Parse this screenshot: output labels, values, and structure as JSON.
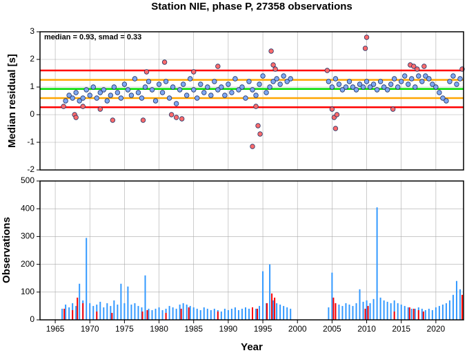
{
  "chart_data": [
    {
      "type": "scatter",
      "title": "Station NIE, phase P, 27358 observations",
      "ylabel": "Median residual [s]",
      "annotation": "median = 0.93, smad = 0.33",
      "xlim": [
        1962.8,
        2024
      ],
      "ylim": [
        -2,
        3
      ],
      "yticks": [
        -2,
        -1,
        0,
        1,
        2,
        3
      ],
      "grid": true,
      "hlines": [
        {
          "value": 1.6,
          "color": "#ff0000"
        },
        {
          "value": 1.26,
          "color": "#ffa500"
        },
        {
          "value": 0.93,
          "color": "#00dd00"
        },
        {
          "value": 0.6,
          "color": "#ffa500"
        },
        {
          "value": 0.27,
          "color": "#ff0000"
        }
      ],
      "series": [
        {
          "color": "#7fa8f2",
          "x": [
            1966.5,
            1967,
            1967.5,
            1968,
            1968.5,
            1969,
            1969.5,
            1970,
            1970.5,
            1971,
            1971.5,
            1972,
            1972.5,
            1973,
            1973.5,
            1974,
            1974.5,
            1975,
            1975.5,
            1976,
            1976.5,
            1977,
            1977.5,
            1978,
            1978.5,
            1979,
            1979.5,
            1980,
            1980.5,
            1981,
            1981.5,
            1982,
            1982.5,
            1983,
            1983.5,
            1984,
            1984.5,
            1985,
            1985.5,
            1986,
            1986.5,
            1987,
            1987.5,
            1988,
            1988.5,
            1989,
            1989.5,
            1990,
            1990.5,
            1991,
            1991.5,
            1992,
            1992.5,
            1993,
            1993.5,
            1994,
            1994.5,
            1995,
            1995.5,
            1996,
            1996.5,
            1997,
            1997.5,
            1998,
            1998.5,
            1999,
            2004.5,
            2005,
            2005.5,
            2006,
            2006.5,
            2007,
            2007.5,
            2008,
            2008.5,
            2009,
            2009.5,
            2010,
            2010.5,
            2011,
            2011.5,
            2012,
            2012.5,
            2013,
            2013.5,
            2014,
            2014.5,
            2015,
            2015.5,
            2016,
            2016.5,
            2017,
            2017.5,
            2018,
            2018.5,
            2019,
            2019.5,
            2020,
            2020.5,
            2021,
            2021.5,
            2022,
            2022.5,
            2023,
            2023.5
          ],
          "values": [
            0.5,
            0.7,
            0.6,
            0.8,
            0.5,
            0.6,
            0.9,
            0.7,
            1.0,
            0.6,
            0.8,
            0.9,
            0.5,
            0.7,
            1.0,
            0.8,
            0.6,
            1.1,
            0.9,
            0.7,
            1.3,
            0.8,
            0.6,
            1.0,
            1.2,
            0.9,
            0.5,
            1.1,
            0.8,
            1.2,
            0.6,
            1.0,
            0.4,
            0.9,
            1.1,
            0.7,
            1.3,
            0.9,
            0.6,
            1.1,
            0.8,
            1.0,
            0.7,
            1.2,
            0.9,
            1.0,
            0.7,
            1.1,
            0.8,
            1.3,
            0.9,
            1.0,
            0.6,
            1.2,
            0.9,
            0.7,
            1.1,
            1.4,
            0.8,
            1.0,
            1.2,
            1.3,
            1.1,
            1.4,
            1.2,
            1.3,
            1.2,
            1.0,
            1.3,
            1.1,
            0.9,
            1.0,
            1.2,
            1.0,
            0.9,
            1.1,
            1.0,
            1.2,
            1.0,
            1.1,
            0.9,
            1.2,
            1.0,
            0.9,
            1.1,
            1.3,
            1.0,
            1.2,
            1.4,
            1.1,
            1.3,
            1.0,
            1.4,
            1.2,
            1.4,
            1.3,
            1.1,
            1.0,
            0.8,
            0.6,
            0.5,
            1.2,
            1.4,
            1.1,
            1.3
          ]
        },
        {
          "color": "#ff6b6b",
          "x": [
            1966.2,
            1967.8,
            1968,
            1969,
            1971.5,
            1973.3,
            1977.7,
            1978.2,
            1980.8,
            1981.8,
            1982.5,
            1983.3,
            1985,
            1988.5,
            1993.5,
            1994,
            1994.3,
            1994.6,
            1996.2,
            1996.5,
            1996.8,
            2004.3,
            2005,
            2005.3,
            2005.5,
            2005.7,
            2009.8,
            2010,
            2013.8,
            2016.3,
            2016.8,
            2017.3,
            2018.3,
            2023.8
          ],
          "values": [
            0.3,
            0.0,
            -0.1,
            0.3,
            0.2,
            -0.2,
            -0.2,
            1.55,
            1.9,
            0.0,
            -0.1,
            -0.15,
            1.55,
            1.75,
            -1.15,
            0.3,
            -0.4,
            -0.7,
            2.3,
            1.8,
            1.65,
            1.6,
            0.2,
            -0.1,
            -0.5,
            0.0,
            2.4,
            2.8,
            0.2,
            1.8,
            1.75,
            1.65,
            1.75,
            1.65
          ]
        }
      ]
    },
    {
      "type": "bar",
      "ylabel": "Observations",
      "xlabel": "Year",
      "xlim": [
        1962.8,
        2024
      ],
      "xticks": [
        1965,
        1970,
        1975,
        1980,
        1985,
        1990,
        1995,
        2000,
        2005,
        2010,
        2015,
        2020
      ],
      "ylim": [
        0,
        500
      ],
      "yticks": [
        0,
        100,
        200,
        300,
        400,
        500
      ],
      "grid": true,
      "series": [
        {
          "color": "#3399ff",
          "x": [
            1966,
            1966.5,
            1967,
            1967.5,
            1968,
            1968.5,
            1969,
            1969.5,
            1970,
            1970.5,
            1971,
            1971.5,
            1972,
            1972.5,
            1973,
            1973.5,
            1974,
            1974.5,
            1975,
            1975.5,
            1976,
            1976.5,
            1977,
            1977.5,
            1978,
            1978.5,
            1979,
            1979.5,
            1980,
            1980.5,
            1981,
            1981.5,
            1982,
            1982.5,
            1983,
            1983.5,
            1984,
            1984.5,
            1985,
            1985.5,
            1986,
            1986.5,
            1987,
            1987.5,
            1988,
            1988.5,
            1989,
            1989.5,
            1990,
            1990.5,
            1991,
            1991.5,
            1992,
            1992.5,
            1993,
            1993.5,
            1994,
            1994.5,
            1995,
            1995.5,
            1996,
            1996.5,
            1997,
            1997.5,
            1998,
            1998.5,
            1999,
            2004.5,
            2005,
            2005.5,
            2006,
            2006.5,
            2007,
            2007.5,
            2008,
            2008.5,
            2009,
            2009.5,
            2010,
            2010.5,
            2011,
            2011.5,
            2012,
            2012.5,
            2013,
            2013.5,
            2014,
            2014.5,
            2015,
            2015.5,
            2016,
            2016.5,
            2017,
            2017.5,
            2018,
            2018.5,
            2019,
            2019.5,
            2020,
            2020.5,
            2021,
            2021.5,
            2022,
            2022.5,
            2023,
            2023.5
          ],
          "values": [
            40,
            55,
            45,
            60,
            50,
            130,
            70,
            295,
            60,
            50,
            55,
            65,
            45,
            60,
            50,
            70,
            55,
            130,
            60,
            120,
            55,
            60,
            50,
            45,
            160,
            40,
            35,
            40,
            45,
            35,
            40,
            50,
            45,
            40,
            55,
            60,
            55,
            50,
            45,
            40,
            35,
            45,
            40,
            35,
            40,
            35,
            30,
            40,
            35,
            40,
            45,
            35,
            40,
            45,
            40,
            35,
            40,
            50,
            175,
            60,
            200,
            70,
            60,
            55,
            50,
            45,
            40,
            45,
            170,
            60,
            55,
            50,
            60,
            55,
            50,
            60,
            110,
            65,
            70,
            60,
            75,
            405,
            80,
            70,
            65,
            60,
            70,
            60,
            55,
            50,
            45,
            40,
            40,
            45,
            40,
            35,
            40,
            35,
            45,
            50,
            55,
            60,
            70,
            90,
            140,
            110
          ]
        },
        {
          "color": "#ff0000",
          "x": [
            1966.3,
            1967.5,
            1968.2,
            1969,
            1971,
            1973.2,
            1977.6,
            1978.3,
            1981,
            1983.2,
            1984.3,
            1988.5,
            1993.5,
            1994.2,
            1995.6,
            1996.3,
            1996.7,
            2005.2,
            2005.5,
            2009.8,
            2010.2,
            2014,
            2016.2,
            2016.8,
            2017.5,
            2018.2,
            2023.8
          ],
          "values": [
            40,
            35,
            80,
            60,
            30,
            25,
            30,
            35,
            25,
            40,
            45,
            30,
            45,
            40,
            60,
            95,
            80,
            80,
            60,
            40,
            50,
            30,
            45,
            40,
            35,
            30,
            90
          ]
        }
      ]
    }
  ]
}
